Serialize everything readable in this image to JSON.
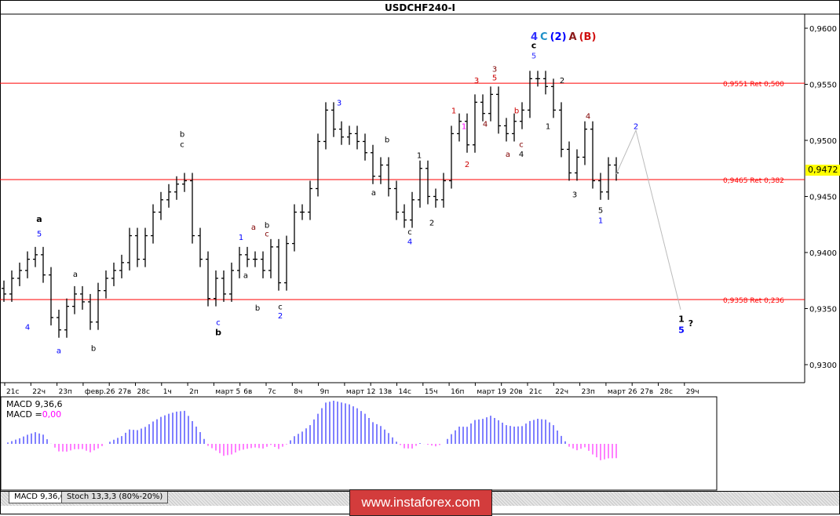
{
  "title": "USDCHF240-I",
  "current_price": "0,9472",
  "chart_data": {
    "type": "ohlc-bar",
    "symbol": "USDCHF240-I",
    "ylim": [
      0.9275,
      0.9612
    ],
    "y_ticks": [
      "0,9600",
      "0,9550",
      "0,9500",
      "0,9450",
      "0,9400",
      "0,9350",
      "0,9300"
    ],
    "y_tick_values": [
      0.96,
      0.955,
      0.95,
      0.945,
      0.94,
      0.935,
      0.93
    ],
    "x_ticks": [
      "21с",
      "22ч",
      "23п",
      "февр.26",
      "27в",
      "28с",
      "1ч",
      "2п",
      "март 5",
      "6в",
      "7с",
      "8ч",
      "9п",
      "март 12",
      "13в",
      "14с",
      "15ч",
      "16п",
      "март 19",
      "20в",
      "21с",
      "22ч",
      "23п",
      "март 26",
      "27в",
      "28с",
      "29ч"
    ],
    "close": [
      0.9363,
      0.9377,
      0.9384,
      0.9394,
      0.9398,
      0.938,
      0.9342,
      0.9331,
      0.9352,
      0.9363,
      0.9356,
      0.9338,
      0.9366,
      0.9377,
      0.9384,
      0.9391,
      0.9415,
      0.9394,
      0.9415,
      0.9436,
      0.9447,
      0.9454,
      0.9461,
      0.9464,
      0.9415,
      0.9394,
      0.9359,
      0.9377,
      0.9363,
      0.9384,
      0.9398,
      0.9394,
      0.9394,
      0.9384,
      0.9405,
      0.9373,
      0.9408,
      0.9436,
      0.9436,
      0.9457,
      0.9499,
      0.9527,
      0.951,
      0.9503,
      0.9506,
      0.9499,
      0.9489,
      0.9468,
      0.9478,
      0.9457,
      0.9436,
      0.9429,
      0.9447,
      0.9475,
      0.945,
      0.9447,
      0.9464,
      0.9506,
      0.9517,
      0.9496,
      0.9534,
      0.9524,
      0.9541,
      0.9513,
      0.9506,
      0.9517,
      0.9527,
      0.9555,
      0.9555,
      0.9548,
      0.9527,
      0.9492,
      0.9471,
      0.9485,
      0.951,
      0.9464,
      0.9454,
      0.9478,
      0.9471
    ],
    "levels": [
      {
        "price": 0.9551,
        "label": "0,9551 Ret 0,500"
      },
      {
        "price": 0.9465,
        "label": "0,9465 Ret 0,382"
      },
      {
        "price": 0.9358,
        "label": "0,9358 Ret 0,236"
      }
    ],
    "level_color": "#ff0000",
    "projection": [
      [
        78,
        0.947
      ],
      [
        80.5,
        0.9509
      ],
      [
        86.2,
        0.9349
      ]
    ],
    "wave_labels": [
      {
        "t": "4",
        "i": 3,
        "p": 0.9334,
        "c": "#0000ff"
      },
      {
        "t": "a",
        "i": 7,
        "p": 0.9313,
        "c": "#0000ff"
      },
      {
        "t": "b",
        "i": 11.4,
        "p": 0.9315,
        "c": "#000000"
      },
      {
        "t": "a",
        "i": 9.1,
        "p": 0.9381,
        "c": "#000000"
      },
      {
        "t": "a",
        "i": 4.5,
        "p": 0.943,
        "c": "#000000",
        "b": true
      },
      {
        "t": "5",
        "i": 4.5,
        "p": 0.9417,
        "c": "#0000ff"
      },
      {
        "t": "b",
        "i": 22.7,
        "p": 0.9506,
        "c": "#000000"
      },
      {
        "t": "c",
        "i": 22.7,
        "p": 0.9497,
        "c": "#000000"
      },
      {
        "t": "1",
        "i": 30.2,
        "p": 0.9414,
        "c": "#0000ff"
      },
      {
        "t": "a",
        "i": 31.8,
        "p": 0.9423,
        "c": "#800000"
      },
      {
        "t": "b",
        "i": 33.5,
        "p": 0.9425,
        "c": "#000000"
      },
      {
        "t": "c",
        "i": 33.5,
        "p": 0.9417,
        "c": "#800000"
      },
      {
        "t": "a",
        "i": 30.8,
        "p": 0.938,
        "c": "#000000"
      },
      {
        "t": "b",
        "i": 32.3,
        "p": 0.9351,
        "c": "#000000"
      },
      {
        "t": "c",
        "i": 35.2,
        "p": 0.9352,
        "c": "#000000"
      },
      {
        "t": "2",
        "i": 35.2,
        "p": 0.9344,
        "c": "#0000ff"
      },
      {
        "t": "c",
        "i": 27.3,
        "p": 0.9338,
        "c": "#0000ff"
      },
      {
        "t": "b",
        "i": 27.3,
        "p": 0.9329,
        "c": "#000000",
        "b": true
      },
      {
        "t": "3",
        "i": 42.7,
        "p": 0.9534,
        "c": "#0000ff"
      },
      {
        "t": "b",
        "i": 48.8,
        "p": 0.9501,
        "c": "#000000"
      },
      {
        "t": "a",
        "i": 47.1,
        "p": 0.9454,
        "c": "#000000"
      },
      {
        "t": "1",
        "i": 52.9,
        "p": 0.9487,
        "c": "#000000"
      },
      {
        "t": "c",
        "i": 51.7,
        "p": 0.9419,
        "c": "#000000"
      },
      {
        "t": "4",
        "i": 51.7,
        "p": 0.941,
        "c": "#0000ff"
      },
      {
        "t": "2",
        "i": 54.5,
        "p": 0.9427,
        "c": "#000000"
      },
      {
        "t": "1",
        "i": 57.3,
        "p": 0.9527,
        "c": "#cc0000"
      },
      {
        "t": "1",
        "i": 58.6,
        "p": 0.9513,
        "c": "#ff00ff"
      },
      {
        "t": "2",
        "i": 59,
        "p": 0.9479,
        "c": "#cc0000"
      },
      {
        "t": "3",
        "i": 60.2,
        "p": 0.9554,
        "c": "#cc0000"
      },
      {
        "t": "4",
        "i": 61.3,
        "p": 0.9515,
        "c": "#800000"
      },
      {
        "t": "3",
        "i": 62.5,
        "p": 0.9564,
        "c": "#800000"
      },
      {
        "t": "5",
        "i": 62.5,
        "p": 0.9557,
        "c": "#cc0000"
      },
      {
        "t": "b",
        "i": 65.3,
        "p": 0.9527,
        "c": "#cc0000"
      },
      {
        "t": "a",
        "i": 64.2,
        "p": 0.9488,
        "c": "#800000"
      },
      {
        "t": "c",
        "i": 65.9,
        "p": 0.9497,
        "c": "#800000"
      },
      {
        "t": "4",
        "i": 65.9,
        "p": 0.9488,
        "c": "#000000"
      },
      {
        "t": "5",
        "i": 67.5,
        "p": 0.9576,
        "c": "#3030ff"
      },
      {
        "t": "c",
        "i": 67.5,
        "p": 0.9585,
        "c": "#000000",
        "b": true
      },
      {
        "t": "2",
        "i": 71.1,
        "p": 0.9554,
        "c": "#000000"
      },
      {
        "t": "1",
        "i": 69.3,
        "p": 0.9513,
        "c": "#000000"
      },
      {
        "t": "4",
        "i": 74.4,
        "p": 0.9522,
        "c": "#800000"
      },
      {
        "t": "3",
        "i": 72.7,
        "p": 0.9452,
        "c": "#000000"
      },
      {
        "t": "5",
        "i": 76,
        "p": 0.9438,
        "c": "#000000"
      },
      {
        "t": "1",
        "i": 76,
        "p": 0.9429,
        "c": "#0000ff"
      },
      {
        "t": "2",
        "i": 80.5,
        "p": 0.9513,
        "c": "#0000ff"
      },
      {
        "t": "1",
        "i": 86.3,
        "p": 0.9341,
        "c": "#000000",
        "b": true
      },
      {
        "t": "5",
        "i": 86.3,
        "p": 0.9331,
        "c": "#0000ff",
        "b": true
      },
      {
        "t": "?",
        "i": 87.5,
        "p": 0.9337,
        "c": "#000000",
        "b": true
      }
    ],
    "header_labels": [
      {
        "t": "4",
        "c": "#3030ff"
      },
      {
        "t": "C",
        "c": "#1e90c8"
      },
      {
        "t": "(2)",
        "c": "#0000ff"
      },
      {
        "t": "A",
        "c": "#8b1a1a"
      },
      {
        "t": "(B)",
        "c": "#d01010"
      }
    ],
    "macd": {
      "label": "MACD 9,36,6",
      "value_prefix": "MACD =",
      "value": "0,00",
      "pos_color": "#0000ff",
      "neg_color": "#ff00ff"
    }
  },
  "tabs": [
    {
      "label": "MACD 9,36,6",
      "active": true
    },
    {
      "label": "Stoch 13,3,3 (80%-20%)",
      "active": false
    }
  ],
  "watermark": "www.instaforex.com"
}
